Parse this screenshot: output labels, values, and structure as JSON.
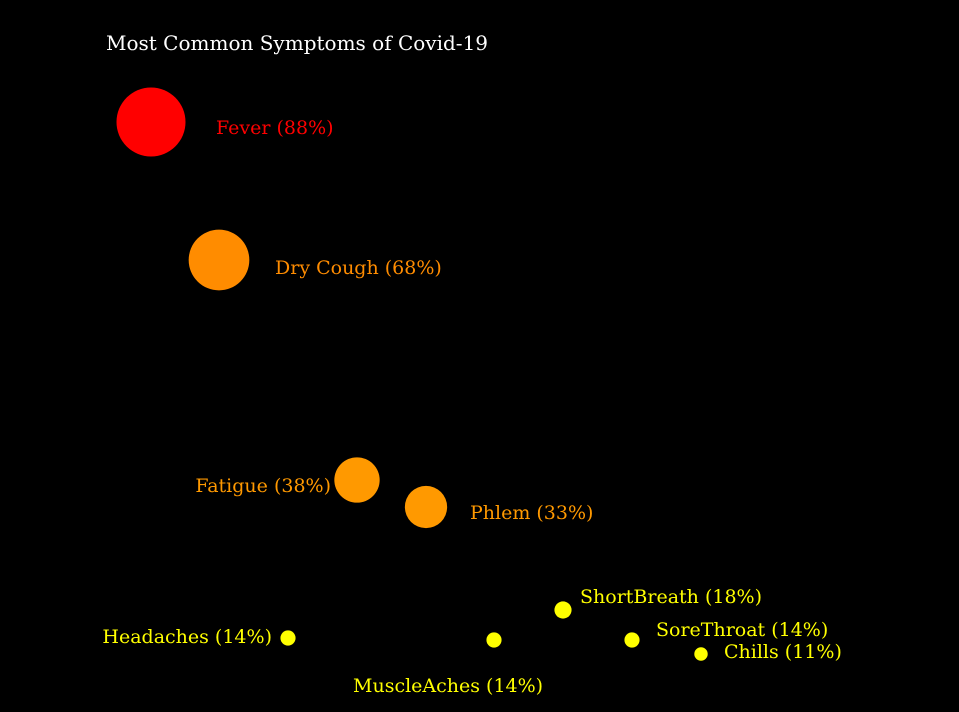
{
  "chart_data": {
    "type": "scatter",
    "title": "Most Common Symptoms of Covid-19",
    "xlabel": "",
    "ylabel": "",
    "grid": false,
    "legend": "none",
    "points": [
      {
        "label": "Fever (88%)",
        "symptom": "Fever",
        "value": 88,
        "color": "#ff0000"
      },
      {
        "label": "Dry Cough (68%)",
        "symptom": "Dry Cough",
        "value": 68,
        "color": "#ff8c00"
      },
      {
        "label": "Fatigue (38%)",
        "symptom": "Fatigue",
        "value": 38,
        "color": "#ff9900"
      },
      {
        "label": "Phlem (33%)",
        "symptom": "Phlem",
        "value": 33,
        "color": "#ff9900"
      },
      {
        "label": "ShortBreath (18%)",
        "symptom": "ShortBreath",
        "value": 18,
        "color": "#ffff00"
      },
      {
        "label": "Headaches (14%)",
        "symptom": "Headaches",
        "value": 14,
        "color": "#ffff00"
      },
      {
        "label": "MuscleAches (14%)",
        "symptom": "MuscleAches",
        "value": 14,
        "color": "#ffff00"
      },
      {
        "label": "SoreThroat (14%)",
        "symptom": "SoreThroat",
        "value": 14,
        "color": "#ffff00"
      },
      {
        "label": "Chills (11%)",
        "symptom": "Chills",
        "value": 11,
        "color": "#ffff00"
      }
    ]
  }
}
